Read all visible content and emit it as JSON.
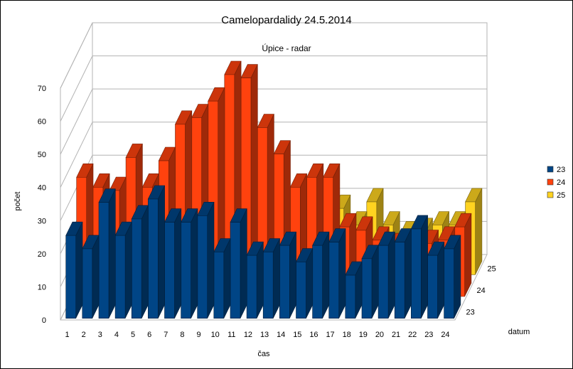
{
  "chart_data": {
    "type": "bar",
    "subtype": "3d-deep",
    "title": "Camelopardalidy 24.5.2014",
    "subtitle": "Úpice - radar",
    "xlabel": "čas",
    "ylabel": "počet",
    "zlabel": "datum",
    "ylim": [
      0,
      70
    ],
    "yticks": [
      0,
      10,
      20,
      30,
      40,
      50,
      60,
      70
    ],
    "grid": true,
    "legend_position": "right",
    "categories": [
      "1",
      "2",
      "3",
      "4",
      "5",
      "6",
      "7",
      "8",
      "9",
      "10",
      "11",
      "12",
      "13",
      "14",
      "15",
      "16",
      "17",
      "18",
      "19",
      "20",
      "21",
      "22",
      "23",
      "24"
    ],
    "series": [
      {
        "name": "23",
        "color": "#004586",
        "values": [
          25,
          21,
          35,
          25,
          30,
          36,
          29,
          29,
          31,
          20,
          29,
          19,
          20,
          22,
          17,
          22,
          23,
          13,
          18,
          22,
          23,
          27,
          19,
          21
        ]
      },
      {
        "name": "24",
        "color": "#ff420e",
        "values": [
          36,
          33,
          32,
          42,
          33,
          41,
          52,
          54,
          59,
          67,
          66,
          51,
          43,
          33,
          36,
          36,
          21,
          20,
          17,
          15,
          15,
          16,
          17,
          21
        ]
      },
      {
        "name": "25",
        "color": "#ffd320",
        "values": [
          15,
          17,
          14,
          12,
          11,
          12,
          26,
          32,
          28,
          35,
          28,
          23,
          18,
          20,
          20,
          20,
          15,
          22,
          15,
          12,
          13,
          15,
          15,
          22
        ]
      }
    ]
  }
}
